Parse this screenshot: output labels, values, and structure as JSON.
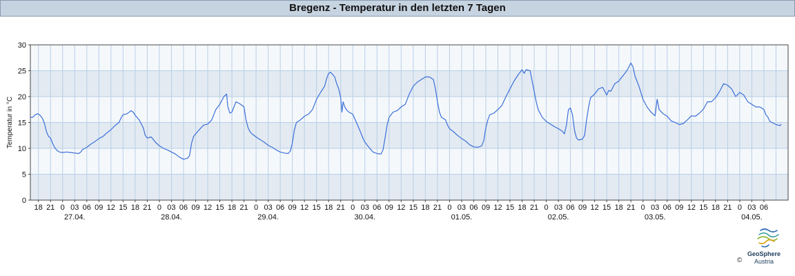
{
  "chart_data": {
    "type": "line",
    "title": "Bregenz - Temperatur in den letzten 7 Tagen",
    "ylabel": "Temperatur in °C",
    "ylim": [
      0,
      30
    ],
    "yticks": [
      0,
      5,
      10,
      15,
      20,
      25,
      30
    ],
    "grid": true,
    "x_hour_ticks": [
      "18",
      "21",
      "0",
      "03",
      "06",
      "09",
      "12",
      "15",
      "18",
      "21",
      "0",
      "03",
      "06",
      "09",
      "12",
      "15",
      "18",
      "21",
      "0",
      "03",
      "06",
      "09",
      "12",
      "15",
      "18",
      "21",
      "0",
      "03",
      "06",
      "09",
      "12",
      "15",
      "18",
      "21",
      "0",
      "03",
      "06",
      "09",
      "12",
      "15",
      "18",
      "21",
      "0",
      "03",
      "06",
      "09",
      "12",
      "15",
      "18",
      "21",
      "0",
      "03",
      "06",
      "09",
      "12",
      "15",
      "18",
      "21",
      "0",
      "03",
      "06"
    ],
    "x_date_labels": [
      "27.04.",
      "28.04.",
      "29.04.",
      "30.04.",
      "01.05.",
      "02.05.",
      "03.05.",
      "04.05."
    ],
    "x_start_hour": 16,
    "series": [
      {
        "color": "#3a6fd8",
        "points": [
          [
            0,
            16.0
          ],
          [
            0.6,
            16.0
          ],
          [
            1.2,
            16.5
          ],
          [
            1.8,
            16.7
          ],
          [
            2.4,
            16.4
          ],
          [
            3.0,
            15.8
          ],
          [
            3.5,
            14.8
          ],
          [
            4.0,
            13.2
          ],
          [
            4.5,
            12.3
          ],
          [
            5.0,
            12.0
          ],
          [
            5.5,
            11.0
          ],
          [
            6.0,
            10.2
          ],
          [
            6.6,
            9.6
          ],
          [
            7.2,
            9.3
          ],
          [
            8.0,
            9.2
          ],
          [
            9.0,
            9.3
          ],
          [
            10.0,
            9.2
          ],
          [
            11.0,
            9.1
          ],
          [
            12.0,
            9.0
          ],
          [
            12.5,
            9.3
          ],
          [
            13.0,
            9.8
          ],
          [
            14.0,
            10.2
          ],
          [
            15.0,
            10.8
          ],
          [
            16.0,
            11.3
          ],
          [
            17.0,
            11.9
          ],
          [
            18.0,
            12.3
          ],
          [
            19.0,
            13.0
          ],
          [
            20.0,
            13.6
          ],
          [
            21.0,
            14.4
          ],
          [
            22.0,
            15.0
          ],
          [
            22.5,
            15.9
          ],
          [
            23.0,
            16.5
          ],
          [
            24.0,
            16.7
          ],
          [
            25.0,
            17.3
          ],
          [
            25.5,
            17.0
          ],
          [
            26.0,
            16.4
          ],
          [
            27.0,
            15.5
          ],
          [
            28.0,
            14.0
          ],
          [
            28.5,
            12.5
          ],
          [
            29.0,
            12.0
          ],
          [
            30.0,
            12.2
          ],
          [
            31.0,
            11.2
          ],
          [
            32.0,
            10.5
          ],
          [
            33.0,
            10.0
          ],
          [
            34.0,
            9.7
          ],
          [
            35.0,
            9.3
          ],
          [
            36.0,
            8.9
          ],
          [
            37.0,
            8.3
          ],
          [
            38.0,
            7.9
          ],
          [
            39.0,
            8.1
          ],
          [
            39.5,
            8.6
          ],
          [
            40.0,
            11.0
          ],
          [
            40.5,
            12.3
          ],
          [
            41.0,
            12.8
          ],
          [
            42.0,
            13.7
          ],
          [
            43.0,
            14.5
          ],
          [
            44.0,
            14.7
          ],
          [
            45.0,
            15.5
          ],
          [
            46.0,
            17.5
          ],
          [
            47.0,
            18.5
          ],
          [
            48.0,
            20.0
          ],
          [
            48.7,
            20.5
          ],
          [
            49.0,
            18.0
          ],
          [
            49.5,
            16.8
          ],
          [
            50.0,
            17.0
          ],
          [
            51.0,
            19.0
          ],
          [
            52.0,
            18.6
          ],
          [
            53.0,
            18.0
          ],
          [
            53.5,
            15.5
          ],
          [
            54.0,
            14.0
          ],
          [
            54.5,
            13.2
          ],
          [
            55.0,
            12.8
          ],
          [
            56.0,
            12.2
          ],
          [
            57.0,
            11.7
          ],
          [
            58.0,
            11.2
          ],
          [
            59.0,
            10.6
          ],
          [
            60.0,
            10.2
          ],
          [
            61.0,
            9.7
          ],
          [
            62.0,
            9.3
          ],
          [
            63.0,
            9.1
          ],
          [
            64.0,
            9.0
          ],
          [
            64.5,
            9.5
          ],
          [
            65.0,
            11.0
          ],
          [
            65.5,
            13.5
          ],
          [
            66.0,
            15.0
          ],
          [
            67.0,
            15.5
          ],
          [
            68.0,
            16.2
          ],
          [
            69.0,
            16.6
          ],
          [
            70.0,
            17.5
          ],
          [
            71.0,
            19.5
          ],
          [
            72.0,
            20.8
          ],
          [
            73.0,
            22.0
          ],
          [
            73.5,
            23.5
          ],
          [
            74.0,
            24.5
          ],
          [
            74.5,
            24.7
          ],
          [
            75.0,
            24.3
          ],
          [
            75.5,
            23.8
          ],
          [
            76.0,
            22.5
          ],
          [
            76.5,
            21.5
          ],
          [
            77.0,
            19.8
          ],
          [
            77.3,
            17.0
          ],
          [
            77.6,
            19.0
          ],
          [
            78.0,
            18.0
          ],
          [
            78.5,
            17.4
          ],
          [
            79.0,
            17.0
          ],
          [
            80.0,
            16.6
          ],
          [
            81.0,
            14.8
          ],
          [
            82.0,
            13.0
          ],
          [
            82.5,
            12.0
          ],
          [
            83.0,
            11.2
          ],
          [
            84.0,
            10.2
          ],
          [
            85.0,
            9.3
          ],
          [
            86.0,
            9.0
          ],
          [
            87.0,
            8.9
          ],
          [
            87.5,
            9.7
          ],
          [
            88.0,
            12.0
          ],
          [
            88.5,
            14.5
          ],
          [
            89.0,
            16.0
          ],
          [
            90.0,
            17.0
          ],
          [
            91.0,
            17.3
          ],
          [
            92.0,
            18.0
          ],
          [
            93.0,
            18.5
          ],
          [
            94.0,
            20.5
          ],
          [
            95.0,
            22.0
          ],
          [
            96.0,
            22.8
          ],
          [
            97.0,
            23.3
          ],
          [
            98.0,
            23.8
          ],
          [
            99.0,
            23.8
          ],
          [
            100.0,
            23.3
          ],
          [
            100.5,
            21.5
          ],
          [
            101.0,
            19.0
          ],
          [
            101.5,
            17.0
          ],
          [
            102.0,
            16.0
          ],
          [
            103.0,
            15.5
          ],
          [
            103.5,
            14.5
          ],
          [
            104.0,
            13.8
          ],
          [
            105.0,
            13.2
          ],
          [
            106.0,
            12.5
          ],
          [
            107.0,
            11.9
          ],
          [
            108.0,
            11.4
          ],
          [
            109.0,
            10.7
          ],
          [
            110.0,
            10.3
          ],
          [
            111.0,
            10.2
          ],
          [
            112.0,
            10.5
          ],
          [
            112.5,
            11.5
          ],
          [
            113.0,
            14.0
          ],
          [
            113.5,
            15.5
          ],
          [
            114.0,
            16.5
          ],
          [
            115.0,
            16.8
          ],
          [
            116.0,
            17.5
          ],
          [
            117.0,
            18.3
          ],
          [
            118.0,
            20.0
          ],
          [
            119.0,
            21.5
          ],
          [
            120.0,
            23.0
          ],
          [
            121.0,
            24.2
          ],
          [
            122.0,
            25.2
          ],
          [
            122.5,
            24.5
          ],
          [
            123.0,
            25.2
          ],
          [
            124.0,
            25.0
          ],
          [
            124.5,
            23.0
          ],
          [
            125.0,
            21.0
          ],
          [
            125.5,
            19.0
          ],
          [
            126.0,
            17.5
          ],
          [
            127.0,
            16.0
          ],
          [
            128.0,
            15.2
          ],
          [
            129.0,
            14.7
          ],
          [
            130.0,
            14.2
          ],
          [
            131.0,
            13.8
          ],
          [
            132.0,
            13.3
          ],
          [
            132.5,
            12.8
          ],
          [
            133.0,
            14.5
          ],
          [
            133.5,
            17.5
          ],
          [
            134.0,
            17.8
          ],
          [
            134.5,
            16.5
          ],
          [
            135.0,
            13.5
          ],
          [
            135.5,
            12.0
          ],
          [
            136.0,
            11.6
          ],
          [
            137.0,
            11.8
          ],
          [
            137.5,
            12.5
          ],
          [
            138.0,
            15.5
          ],
          [
            138.5,
            18.0
          ],
          [
            139.0,
            19.8
          ],
          [
            140.0,
            20.5
          ],
          [
            141.0,
            21.5
          ],
          [
            142.0,
            21.8
          ],
          [
            143.0,
            20.3
          ],
          [
            143.5,
            21.2
          ],
          [
            144.0,
            21.0
          ],
          [
            145.0,
            22.5
          ],
          [
            146.0,
            23.0
          ],
          [
            147.0,
            24.0
          ],
          [
            148.0,
            25.0
          ],
          [
            149.0,
            26.5
          ],
          [
            149.5,
            25.8
          ],
          [
            150.0,
            24.0
          ],
          [
            151.0,
            22.0
          ],
          [
            152.0,
            19.5
          ],
          [
            153.0,
            18.0
          ],
          [
            154.0,
            17.0
          ],
          [
            155.0,
            16.3
          ],
          [
            155.5,
            19.5
          ],
          [
            156.0,
            17.5
          ],
          [
            157.0,
            16.7
          ],
          [
            158.0,
            16.2
          ],
          [
            159.0,
            15.3
          ],
          [
            160.0,
            15.0
          ],
          [
            161.0,
            14.6
          ],
          [
            162.0,
            14.8
          ],
          [
            163.0,
            15.5
          ],
          [
            164.0,
            16.3
          ],
          [
            165.0,
            16.2
          ],
          [
            166.0,
            16.8
          ],
          [
            167.0,
            17.6
          ],
          [
            168.0,
            19.0
          ],
          [
            169.0,
            19.0
          ],
          [
            170.0,
            19.8
          ],
          [
            171.0,
            21.0
          ],
          [
            172.0,
            22.5
          ],
          [
            173.0,
            22.2
          ],
          [
            174.0,
            21.5
          ],
          [
            175.0,
            20.0
          ],
          [
            176.0,
            20.8
          ],
          [
            177.0,
            20.3
          ],
          [
            178.0,
            19.0
          ],
          [
            179.0,
            18.5
          ],
          [
            180.0,
            18.0
          ],
          [
            181.0,
            18.0
          ],
          [
            182.0,
            17.5
          ],
          [
            182.5,
            16.5
          ],
          [
            183.0,
            16.0
          ],
          [
            183.5,
            15.2
          ],
          [
            184.0,
            15.0
          ],
          [
            185.0,
            14.6
          ],
          [
            185.5,
            14.5
          ],
          [
            186.0,
            14.4
          ],
          [
            186.3,
            14.7
          ]
        ]
      }
    ],
    "colors": {
      "band_dark": "#e3eaf2",
      "band_light": "#f5f8fb",
      "grid": "#b7cee6",
      "line": "#3a6fd8",
      "title_bg": "#c6d3e0"
    }
  },
  "brand": {
    "name": "GeoSphere",
    "sub": "Austria",
    "copyright": "©"
  }
}
